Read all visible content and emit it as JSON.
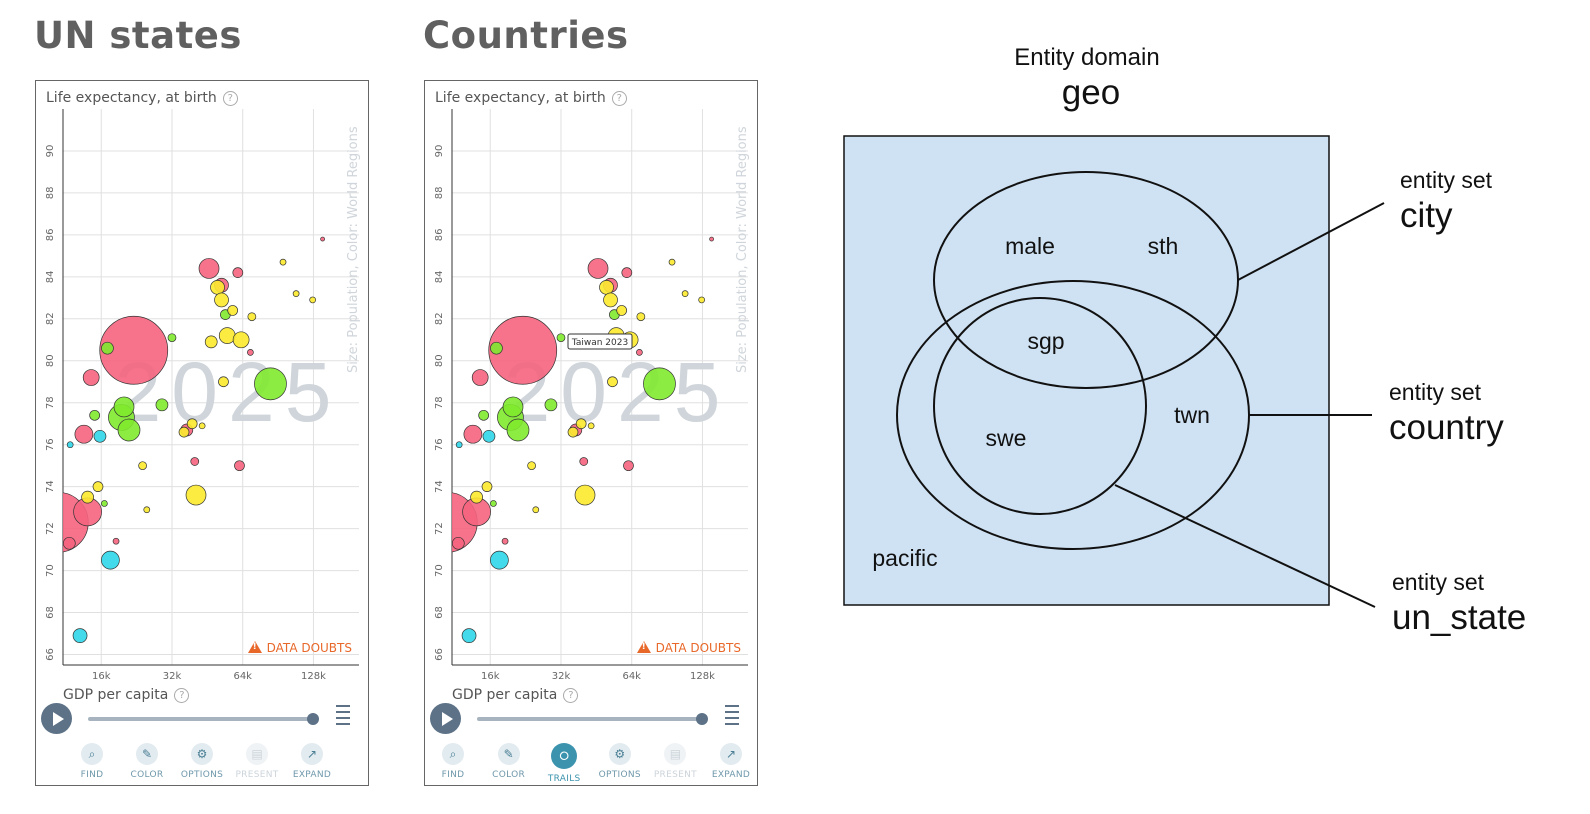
{
  "headings": {
    "left": "UN states",
    "middle": "Countries"
  },
  "chart_panels": [
    {
      "y_axis_label": "Life expectancy, at birth",
      "x_axis_label": "GDP per capita",
      "y_ticks": [
        "90",
        "88",
        "86",
        "84",
        "82",
        "80",
        "78",
        "76",
        "74",
        "72",
        "70",
        "68",
        "66"
      ],
      "x_ticks": [
        "16k",
        "32k",
        "64k",
        "128k"
      ],
      "size_color_legend": "Size: Population, Color: World Regions",
      "year_watermark": "2025",
      "data_doubts_label": "DATA DOUBTS",
      "tooltip": "",
      "tools": [
        {
          "label": "FIND",
          "icon": "search-icon",
          "state": "normal"
        },
        {
          "label": "COLOR",
          "icon": "brush-icon",
          "state": "normal"
        },
        {
          "label": "OPTIONS",
          "icon": "gear-icon",
          "state": "normal"
        },
        {
          "label": "PRESENT",
          "icon": "present-icon",
          "state": "disabled"
        },
        {
          "label": "EXPAND",
          "icon": "expand-icon",
          "state": "normal"
        }
      ]
    },
    {
      "y_axis_label": "Life expectancy, at birth",
      "x_axis_label": "GDP per capita",
      "y_ticks": [
        "90",
        "88",
        "86",
        "84",
        "82",
        "80",
        "78",
        "76",
        "74",
        "72",
        "70",
        "68",
        "66"
      ],
      "x_ticks": [
        "16k",
        "32k",
        "64k",
        "128k"
      ],
      "size_color_legend": "Size: Population, Color: World Regions",
      "year_watermark": "2025",
      "data_doubts_label": "DATA DOUBTS",
      "tooltip": "Taiwan 2023",
      "tools": [
        {
          "label": "FIND",
          "icon": "search-icon",
          "state": "normal"
        },
        {
          "label": "COLOR",
          "icon": "brush-icon",
          "state": "normal"
        },
        {
          "label": "TRAILS",
          "icon": "trails-icon",
          "state": "active"
        },
        {
          "label": "OPTIONS",
          "icon": "gear-icon",
          "state": "normal"
        },
        {
          "label": "PRESENT",
          "icon": "present-icon",
          "state": "disabled"
        },
        {
          "label": "EXPAND",
          "icon": "expand-icon",
          "state": "normal"
        }
      ]
    }
  ],
  "colors": {
    "asia": "#f5647e",
    "europe": "#fcea2e",
    "americas": "#7fea2d",
    "africa": "#2fd7ea",
    "venn_fill": "#cfe2f3"
  },
  "venn": {
    "domain_caption": "Entity domain",
    "domain_name": "geo",
    "sets": [
      {
        "caption": "entity set",
        "name": "city"
      },
      {
        "caption": "entity set",
        "name": "country"
      },
      {
        "caption": "entity set",
        "name": "un_state"
      }
    ],
    "members": [
      "male",
      "sth",
      "sgp",
      "twn",
      "swe",
      "pacific"
    ]
  },
  "chart_data": {
    "type": "scatter",
    "xlabel": "GDP per capita",
    "ylabel": "Life expectancy, at birth",
    "x_scale": "log",
    "xlim": [
      11000,
      200000
    ],
    "ylim": [
      65.5,
      92
    ],
    "points": [
      {
        "x": 22000,
        "y": 80.5,
        "size": 34,
        "region": "asia"
      },
      {
        "x": 10500,
        "y": 72.3,
        "size": 30,
        "region": "asia"
      },
      {
        "x": 14000,
        "y": 72.8,
        "size": 14,
        "region": "asia"
      },
      {
        "x": 13500,
        "y": 76.5,
        "size": 9,
        "region": "asia"
      },
      {
        "x": 14500,
        "y": 79.2,
        "size": 8,
        "region": "asia"
      },
      {
        "x": 46000,
        "y": 84.4,
        "size": 10,
        "region": "asia"
      },
      {
        "x": 52000,
        "y": 83.6,
        "size": 7,
        "region": "asia"
      },
      {
        "x": 61000,
        "y": 84.2,
        "size": 5,
        "region": "asia"
      },
      {
        "x": 62000,
        "y": 75.0,
        "size": 5,
        "region": "asia"
      },
      {
        "x": 40000,
        "y": 75.2,
        "size": 4,
        "region": "asia"
      },
      {
        "x": 37000,
        "y": 76.7,
        "size": 6,
        "region": "asia"
      },
      {
        "x": 11700,
        "y": 71.3,
        "size": 6,
        "region": "asia"
      },
      {
        "x": 18500,
        "y": 71.4,
        "size": 3,
        "region": "asia"
      },
      {
        "x": 140000,
        "y": 85.8,
        "size": 2,
        "region": "asia"
      },
      {
        "x": 69000,
        "y": 80.4,
        "size": 3,
        "region": "asia"
      },
      {
        "x": 20000,
        "y": 77.8,
        "size": 10,
        "region": "americas"
      },
      {
        "x": 21000,
        "y": 76.7,
        "size": 11,
        "region": "americas"
      },
      {
        "x": 19500,
        "y": 77.3,
        "size": 13,
        "region": "americas"
      },
      {
        "x": 84000,
        "y": 78.9,
        "size": 16,
        "region": "americas"
      },
      {
        "x": 17000,
        "y": 80.6,
        "size": 6,
        "region": "americas"
      },
      {
        "x": 54000,
        "y": 82.2,
        "size": 5,
        "region": "americas"
      },
      {
        "x": 29000,
        "y": 77.9,
        "size": 6,
        "region": "americas"
      },
      {
        "x": 32000,
        "y": 81.1,
        "size": 4,
        "region": "americas"
      },
      {
        "x": 15000,
        "y": 77.4,
        "size": 5,
        "region": "americas"
      },
      {
        "x": 16500,
        "y": 73.2,
        "size": 3,
        "region": "americas"
      },
      {
        "x": 17500,
        "y": 70.5,
        "size": 9,
        "region": "africa"
      },
      {
        "x": 13000,
        "y": 66.9,
        "size": 7,
        "region": "africa"
      },
      {
        "x": 15800,
        "y": 76.4,
        "size": 6,
        "region": "africa"
      },
      {
        "x": 11800,
        "y": 76.0,
        "size": 3,
        "region": "africa"
      },
      {
        "x": 40500,
        "y": 73.6,
        "size": 10,
        "region": "europe"
      },
      {
        "x": 55000,
        "y": 81.2,
        "size": 8,
        "region": "europe"
      },
      {
        "x": 63000,
        "y": 81.0,
        "size": 8,
        "region": "europe"
      },
      {
        "x": 50000,
        "y": 83.5,
        "size": 7,
        "region": "europe"
      },
      {
        "x": 52000,
        "y": 82.9,
        "size": 7,
        "region": "europe"
      },
      {
        "x": 58000,
        "y": 82.4,
        "size": 5,
        "region": "europe"
      },
      {
        "x": 47000,
        "y": 80.9,
        "size": 6,
        "region": "europe"
      },
      {
        "x": 53000,
        "y": 79.0,
        "size": 5,
        "region": "europe"
      },
      {
        "x": 39000,
        "y": 77.0,
        "size": 5,
        "region": "europe"
      },
      {
        "x": 36000,
        "y": 76.6,
        "size": 5,
        "region": "europe"
      },
      {
        "x": 70000,
        "y": 82.1,
        "size": 4,
        "region": "europe"
      },
      {
        "x": 95000,
        "y": 84.7,
        "size": 3,
        "region": "europe"
      },
      {
        "x": 108000,
        "y": 83.2,
        "size": 3,
        "region": "europe"
      },
      {
        "x": 127000,
        "y": 82.9,
        "size": 3,
        "region": "europe"
      },
      {
        "x": 14000,
        "y": 73.5,
        "size": 6,
        "region": "europe"
      },
      {
        "x": 15500,
        "y": 74.0,
        "size": 5,
        "region": "europe"
      },
      {
        "x": 24000,
        "y": 75.0,
        "size": 4,
        "region": "europe"
      },
      {
        "x": 25000,
        "y": 72.9,
        "size": 3,
        "region": "europe"
      },
      {
        "x": 43000,
        "y": 76.9,
        "size": 3,
        "region": "europe"
      }
    ]
  }
}
